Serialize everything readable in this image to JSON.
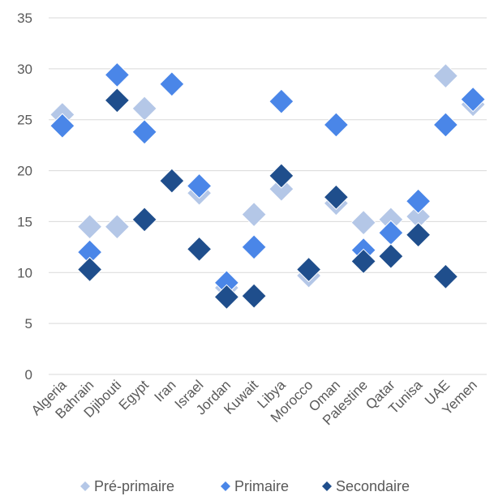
{
  "chart_data": {
    "type": "scatter",
    "categories": [
      "Algeria",
      "Bahrain",
      "Djibouti",
      "Egypt",
      "Iran",
      "Israel",
      "Jordan",
      "Kuwait",
      "Libya",
      "Morocco",
      "Oman",
      "Palestine",
      "Qatar",
      "Tunisa",
      "UAE",
      "Yemen"
    ],
    "yticks": [
      "0",
      "5",
      "10",
      "15",
      "20",
      "25",
      "30",
      "35"
    ],
    "ylim": [
      0,
      35
    ],
    "grid": true,
    "legend_position": "bottom",
    "series": [
      {
        "name": "Pré-primaire",
        "color": "#b4c7e7",
        "values": [
          25.5,
          14.5,
          14.5,
          26.1,
          null,
          17.8,
          8.5,
          15.7,
          18.2,
          9.7,
          16.8,
          14.9,
          15.2,
          15.5,
          29.3,
          26.5
        ]
      },
      {
        "name": "Primaire",
        "color": "#4a86e8",
        "values": [
          24.4,
          12.0,
          29.4,
          23.8,
          28.5,
          18.5,
          9.0,
          12.5,
          26.8,
          null,
          24.5,
          12.2,
          13.9,
          17.0,
          24.5,
          27.0
        ]
      },
      {
        "name": "Secondaire",
        "color": "#1f4e8c",
        "values": [
          null,
          10.3,
          26.9,
          15.2,
          19.0,
          12.3,
          7.6,
          7.7,
          19.5,
          10.3,
          17.4,
          11.1,
          11.6,
          13.7,
          9.6,
          null
        ]
      }
    ]
  }
}
